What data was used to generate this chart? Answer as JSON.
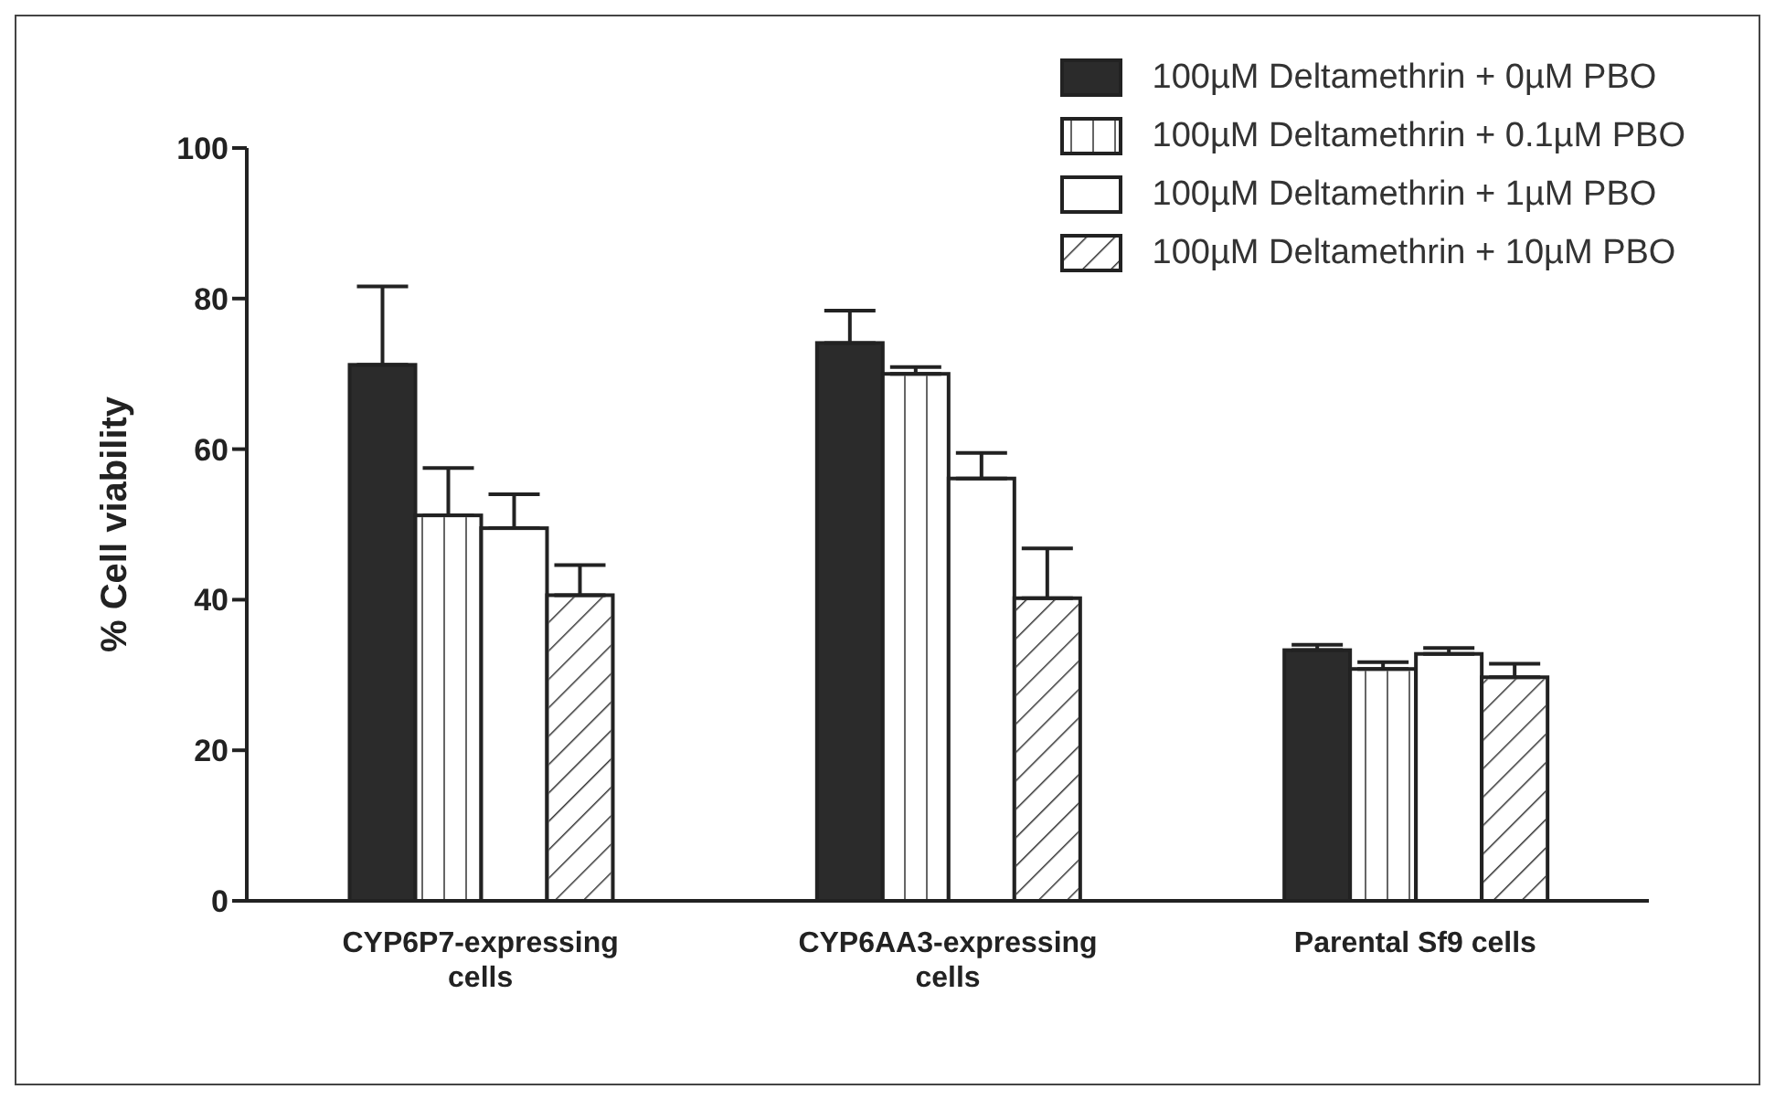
{
  "chart_data": {
    "type": "bar",
    "ylabel": "% Cell viability",
    "categories": [
      "CYP6P7-expressing cells",
      "CYP6AA3-expressing cells",
      "Parental Sf9 cells"
    ],
    "series": [
      {
        "name": "100µM Deltamethrin + 0µM PBO",
        "color": "#2b2b2b",
        "values": [
          71.2,
          74.1,
          33.3
        ],
        "errors": [
          [
            71.2,
            81.6
          ],
          [
            74.1,
            78.4
          ],
          [
            33.3,
            34.0
          ]
        ]
      },
      {
        "name": "100µM Deltamethrin + 0.1µM PBO",
        "color": "#ffffff",
        "values": [
          51.2,
          70.0,
          30.8
        ],
        "errors": [
          [
            51.2,
            57.5
          ],
          [
            70.0,
            70.9
          ],
          [
            30.8,
            31.7
          ]
        ]
      },
      {
        "name": "100µM Deltamethrin + 1µM PBO",
        "color": "#ffffff",
        "values": [
          49.5,
          56.1,
          32.8
        ],
        "errors": [
          [
            49.5,
            54.0
          ],
          [
            56.1,
            59.5
          ],
          [
            32.8,
            33.6
          ]
        ]
      },
      {
        "name": "100µM Deltamethrin + 10µM PBO",
        "color": "#ffffff",
        "values": [
          40.6,
          40.2,
          29.7
        ],
        "errors": [
          [
            40.6,
            44.6
          ],
          [
            40.2,
            46.8
          ],
          [
            29.7,
            31.5
          ]
        ]
      }
    ],
    "ylim": [
      0,
      100
    ],
    "yticks": [
      0,
      20,
      40,
      60,
      80,
      100
    ],
    "grid": false,
    "legend": "top right"
  }
}
